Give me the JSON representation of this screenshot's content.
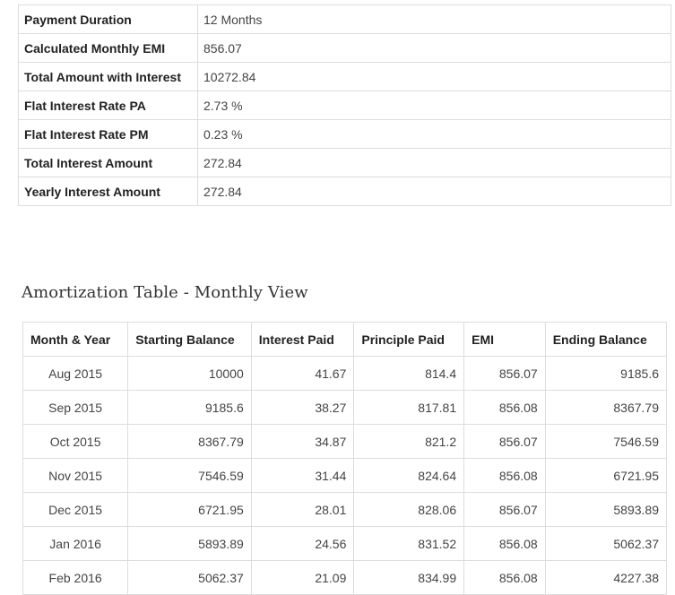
{
  "summary": [
    {
      "label": "Payment Duration",
      "value": "12 Months"
    },
    {
      "label": "Calculated Monthly EMI",
      "value": "856.07"
    },
    {
      "label": "Total Amount with Interest",
      "value": "10272.84"
    },
    {
      "label": "Flat Interest Rate PA",
      "value": "2.73 %"
    },
    {
      "label": "Flat Interest Rate PM",
      "value": "0.23 %"
    },
    {
      "label": "Total Interest Amount",
      "value": "272.84"
    },
    {
      "label": "Yearly Interest Amount",
      "value": "272.84"
    }
  ],
  "amortization": {
    "title": "Amortization Table - Monthly View",
    "headers": [
      "Month & Year",
      "Starting Balance",
      "Interest Paid",
      "Principle Paid",
      "EMI",
      "Ending Balance"
    ],
    "rows": [
      [
        "Aug 2015",
        "10000",
        "41.67",
        "814.4",
        "856.07",
        "9185.6"
      ],
      [
        "Sep 2015",
        "9185.6",
        "38.27",
        "817.81",
        "856.08",
        "8367.79"
      ],
      [
        "Oct 2015",
        "8367.79",
        "34.87",
        "821.2",
        "856.07",
        "7546.59"
      ],
      [
        "Nov 2015",
        "7546.59",
        "31.44",
        "824.64",
        "856.08",
        "6721.95"
      ],
      [
        "Dec 2015",
        "6721.95",
        "28.01",
        "828.06",
        "856.07",
        "5893.89"
      ],
      [
        "Jan 2016",
        "5893.89",
        "24.56",
        "831.52",
        "856.08",
        "5062.37"
      ],
      [
        "Feb 2016",
        "5062.37",
        "21.09",
        "834.99",
        "856.08",
        "4227.38"
      ]
    ]
  }
}
